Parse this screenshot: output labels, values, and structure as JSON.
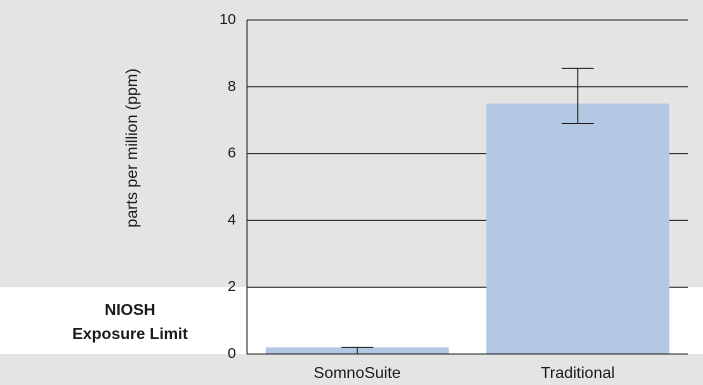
{
  "chart_data": {
    "type": "bar",
    "categories": [
      "SomnoSuite",
      "Traditional"
    ],
    "values": [
      0.2,
      7.5
    ],
    "error_low": [
      0.0,
      6.9
    ],
    "error_high": [
      0.2,
      8.55
    ],
    "ylabel": "parts per million (ppm)",
    "ylim": [
      0,
      10
    ],
    "yticks": [
      0,
      2,
      4,
      6,
      8,
      10
    ],
    "grid": true,
    "bar_color": "#b3c9e3",
    "background_color": "#e4e4e4",
    "limit_band": {
      "threshold": 2,
      "color": "#ffffff",
      "label_line1": "NIOSH",
      "label_line2": "Exposure Limit"
    }
  }
}
